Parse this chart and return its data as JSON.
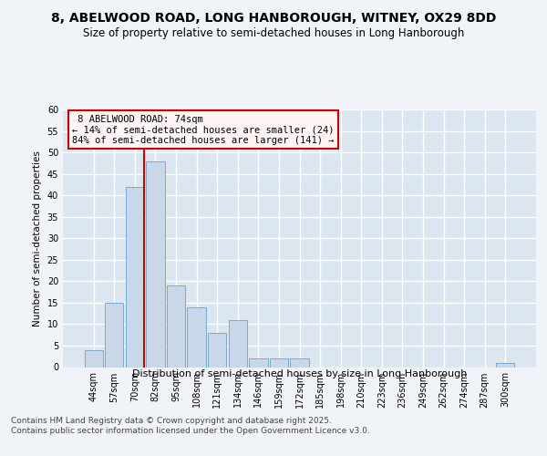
{
  "title": "8, ABELWOOD ROAD, LONG HANBOROUGH, WITNEY, OX29 8DD",
  "subtitle": "Size of property relative to semi-detached houses in Long Hanborough",
  "xlabel": "Distribution of semi-detached houses by size in Long Hanborough",
  "ylabel": "Number of semi-detached properties",
  "categories": [
    "44sqm",
    "57sqm",
    "70sqm",
    "82sqm",
    "95sqm",
    "108sqm",
    "121sqm",
    "134sqm",
    "146sqm",
    "159sqm",
    "172sqm",
    "185sqm",
    "198sqm",
    "210sqm",
    "223sqm",
    "236sqm",
    "249sqm",
    "262sqm",
    "274sqm",
    "287sqm",
    "300sqm"
  ],
  "values": [
    4,
    15,
    42,
    48,
    19,
    14,
    8,
    11,
    2,
    2,
    2,
    0,
    0,
    0,
    0,
    0,
    0,
    0,
    0,
    0,
    1
  ],
  "bar_color": "#c8d8e8",
  "bar_edge_color": "#7aaaca",
  "subject_label": "8 ABELWOOD ROAD: 74sqm",
  "pct_smaller": 14,
  "pct_larger": 84,
  "count_smaller": 24,
  "count_larger": 141,
  "vline_color": "#cc0000",
  "ylim": [
    0,
    60
  ],
  "yticks": [
    0,
    5,
    10,
    15,
    20,
    25,
    30,
    35,
    40,
    45,
    50,
    55,
    60
  ],
  "bg_color": "#dce6f0",
  "grid_color": "#ffffff",
  "footer": "Contains HM Land Registry data © Crown copyright and database right 2025.\nContains public sector information licensed under the Open Government Licence v3.0.",
  "fig_bg": "#f0f4f8"
}
